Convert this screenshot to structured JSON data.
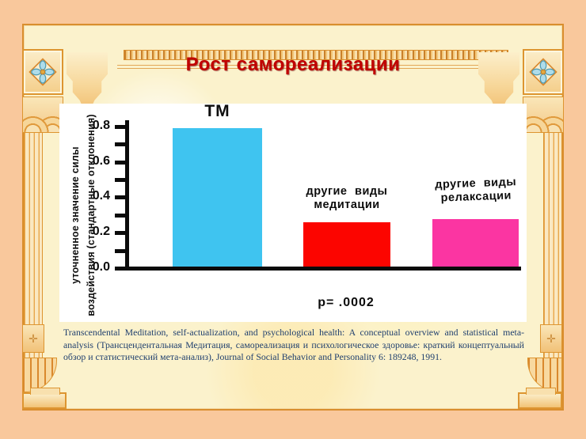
{
  "slide": {
    "title": "Рост самореализации"
  },
  "chart_data": {
    "type": "bar",
    "title": "",
    "categories": [
      "ТМ",
      "другие виды медитации",
      "другие виды релаксации"
    ],
    "bars": [
      {
        "id": "tm",
        "label_lines": [
          "ТМ"
        ],
        "value": 0.78,
        "color": "#3FC4F0"
      },
      {
        "id": "other-meditation",
        "label_lines": [
          "другие виды",
          "медитации"
        ],
        "value": 0.25,
        "color": "#FC0500"
      },
      {
        "id": "other-relaxation",
        "label_lines": [
          "другие виды",
          "релаксации"
        ],
        "value": 0.27,
        "color": "#FB35A2"
      }
    ],
    "ylabel_lines": [
      "уточненное значение силы",
      "воздействия (стандартные отклонения)"
    ],
    "xlabel": "",
    "ylim": [
      0,
      0.8
    ],
    "yticks": [
      0,
      0.2,
      0.4,
      0.6,
      0.8
    ],
    "ytick_labels": [
      "0.0",
      "0.2",
      "0.4",
      "0.6",
      "0.8"
    ],
    "minor_tick_step": 0.1,
    "annotation": "p= .0002",
    "grid": false,
    "legend": false
  },
  "citation": {
    "text": "Transcendental Meditation, self-actualization, and psychological health: A conceptual overview and statistical meta-analysis (Трансцендентальная Медитация, самореализация и психологическое здоровье: краткий концептуальный обзор и статистический мета-анализ), Journal of Social Behavior and Personality 6: 189248, 1991."
  },
  "colors": {
    "title": "#C00000",
    "citation_text": "#1F3F6E",
    "frame_gold": "#D98E2E",
    "inner_cream": "#FBF2CC",
    "outer_peach": "#F9C89C"
  }
}
